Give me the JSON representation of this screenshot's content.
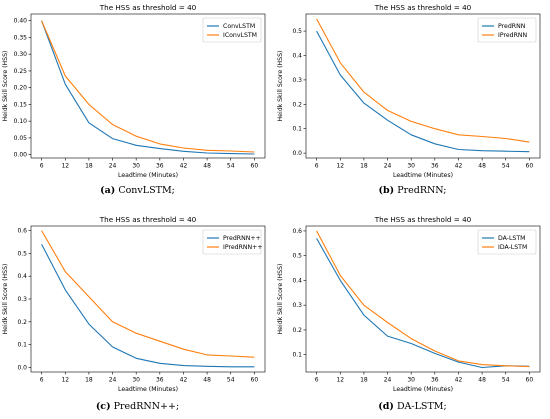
{
  "charts": [
    {
      "caption_letter": "(a)",
      "caption_text": "ConvLSTM;",
      "chart_data": {
        "type": "line",
        "title": "The HSS as threshold = 40",
        "xlabel": "Leadtime (Minutes)",
        "ylabel": "Heidk Skill Score (HSS)",
        "x": [
          6,
          12,
          18,
          24,
          30,
          36,
          42,
          48,
          54,
          60
        ],
        "xticks": [
          "6",
          "12",
          "18",
          "24",
          "30",
          "36",
          "42",
          "48",
          "54",
          "60"
        ],
        "ylim": [
          -0.01,
          0.42
        ],
        "yticks": [
          "0.00",
          "0.05",
          "0.10",
          "0.15",
          "0.20",
          "0.25",
          "0.30",
          "0.35",
          "0.40"
        ],
        "legend_position": "top-right",
        "series": [
          {
            "name": "ConvLSTM",
            "color": "#1f77b4",
            "values": [
              0.4,
              0.21,
              0.095,
              0.048,
              0.028,
              0.018,
              0.01,
              0.005,
              0.003,
              0.002
            ]
          },
          {
            "name": "IConvLSTM",
            "color": "#ff7f0e",
            "values": [
              0.4,
              0.235,
              0.15,
              0.09,
              0.055,
              0.032,
              0.02,
              0.013,
              0.011,
              0.008
            ]
          }
        ]
      }
    },
    {
      "caption_letter": "(b)",
      "caption_text": "PredRNN;",
      "chart_data": {
        "type": "line",
        "title": "The HSS as threshold = 40",
        "xlabel": "Leadtime (Minutes)",
        "ylabel": "Heidk Skill Score (HSS)",
        "x": [
          6,
          12,
          18,
          24,
          30,
          36,
          42,
          48,
          54,
          60
        ],
        "xticks": [
          "6",
          "12",
          "18",
          "24",
          "30",
          "36",
          "42",
          "48",
          "54",
          "60"
        ],
        "ylim": [
          -0.02,
          0.57
        ],
        "yticks": [
          "0.0",
          "0.1",
          "0.2",
          "0.3",
          "0.4",
          "0.5"
        ],
        "legend_position": "top-right",
        "series": [
          {
            "name": "PredRNN",
            "color": "#1f77b4",
            "values": [
              0.5,
              0.32,
              0.205,
              0.135,
              0.075,
              0.038,
              0.015,
              0.01,
              0.008,
              0.006
            ]
          },
          {
            "name": "IPredRNN",
            "color": "#ff7f0e",
            "values": [
              0.55,
              0.37,
              0.25,
              0.175,
              0.13,
              0.1,
              0.075,
              0.068,
              0.06,
              0.045
            ]
          }
        ]
      }
    },
    {
      "caption_letter": "(c)",
      "caption_text": "PredRNN++;",
      "chart_data": {
        "type": "line",
        "title": "The HSS as threshold = 40",
        "xlabel": "Leadtime (Minutes)",
        "ylabel": "Heidk Skill Score (HSS)",
        "x": [
          6,
          12,
          18,
          24,
          30,
          36,
          42,
          48,
          54,
          60
        ],
        "xticks": [
          "6",
          "12",
          "18",
          "24",
          "30",
          "36",
          "42",
          "48",
          "54",
          "60"
        ],
        "ylim": [
          -0.02,
          0.62
        ],
        "yticks": [
          "0.0",
          "0.1",
          "0.2",
          "0.3",
          "0.4",
          "0.5",
          "0.6"
        ],
        "legend_position": "top-right",
        "series": [
          {
            "name": "PredRNN++",
            "color": "#1f77b4",
            "values": [
              0.54,
              0.34,
              0.19,
              0.09,
              0.04,
              0.018,
              0.008,
              0.005,
              0.003,
              0.003
            ]
          },
          {
            "name": "IPredRNN++",
            "color": "#ff7f0e",
            "values": [
              0.6,
              0.42,
              0.31,
              0.2,
              0.15,
              0.115,
              0.08,
              0.055,
              0.05,
              0.045
            ]
          }
        ]
      }
    },
    {
      "caption_letter": "(d)",
      "caption_text": "DA-LSTM;",
      "chart_data": {
        "type": "line",
        "title": "The HSS as threshold = 40",
        "xlabel": "Leadtime (Minutes)",
        "ylabel": "Heidk Skill Score (HSS)",
        "x": [
          6,
          12,
          18,
          24,
          30,
          36,
          42,
          48,
          54,
          60
        ],
        "xticks": [
          "6",
          "12",
          "18",
          "24",
          "30",
          "36",
          "42",
          "48",
          "54",
          "60"
        ],
        "ylim": [
          0.03,
          0.62
        ],
        "yticks": [
          "0.1",
          "0.2",
          "0.3",
          "0.4",
          "0.5",
          "0.6"
        ],
        "legend_position": "top-right",
        "series": [
          {
            "name": "DA-LSTM",
            "color": "#1f77b4",
            "values": [
              0.57,
              0.4,
              0.26,
              0.175,
              0.145,
              0.105,
              0.07,
              0.048,
              0.055,
              0.053
            ]
          },
          {
            "name": "IDA-LSTM",
            "color": "#ff7f0e",
            "values": [
              0.6,
              0.42,
              0.3,
              0.23,
              0.165,
              0.115,
              0.075,
              0.06,
              0.055,
              0.052
            ]
          }
        ]
      }
    }
  ]
}
